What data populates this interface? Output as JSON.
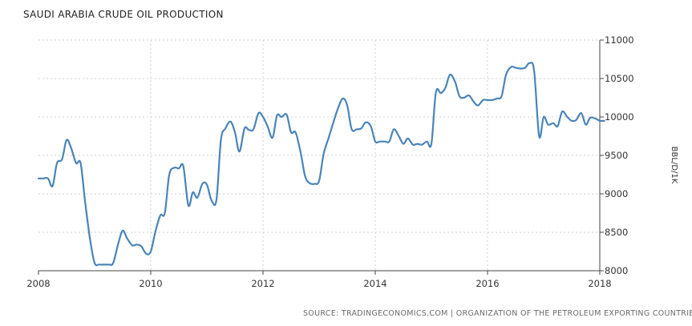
{
  "chart_data": {
    "type": "line",
    "title": "SAUDI ARABIA CRUDE OIL PRODUCTION",
    "ylabel": "BBL/D/1K",
    "xlim": [
      2008.0,
      2018.0
    ],
    "ylim": [
      8000,
      11000
    ],
    "x_ticks": [
      "2008",
      "2010",
      "2012",
      "2014",
      "2016",
      "2018"
    ],
    "y_ticks": [
      "11000",
      "10500",
      "10000",
      "9500",
      "9000",
      "8500",
      "8000"
    ],
    "grid": "horizontal and vertical dashed",
    "source": "SOURCE: TRADINGECONOMICS.COM | ORGANIZATION OF THE PETROLEUM EXPORTING COUNTRIES",
    "line_color": "#4a84b8",
    "series": [
      {
        "x": [
          2008.0,
          2008.08,
          2008.17,
          2008.25,
          2008.33,
          2008.42,
          2008.5,
          2008.58,
          2008.67,
          2008.75,
          2008.83,
          2008.92,
          2009.0,
          2009.08,
          2009.17,
          2009.25,
          2009.33,
          2009.42,
          2009.5,
          2009.58,
          2009.67,
          2009.75,
          2009.83,
          2009.92,
          2010.0,
          2010.08,
          2010.17,
          2010.25,
          2010.33,
          2010.42,
          2010.5,
          2010.58,
          2010.67,
          2010.75,
          2010.83,
          2010.92,
          2011.0,
          2011.08,
          2011.17,
          2011.25,
          2011.33,
          2011.42,
          2011.5,
          2011.58,
          2011.67,
          2011.75,
          2011.83,
          2011.92,
          2012.0,
          2012.08,
          2012.17,
          2012.25,
          2012.33,
          2012.42,
          2012.5,
          2012.58,
          2012.67,
          2012.75,
          2012.83,
          2012.92,
          2013.0,
          2013.08,
          2013.17,
          2013.25,
          2013.33,
          2013.42,
          2013.5,
          2013.58,
          2013.67,
          2013.75,
          2013.83,
          2013.92,
          2014.0,
          2014.08,
          2014.17,
          2014.25,
          2014.33,
          2014.42,
          2014.5,
          2014.58,
          2014.67,
          2014.75,
          2014.83,
          2014.92,
          2015.0,
          2015.08,
          2015.17,
          2015.25,
          2015.33,
          2015.42,
          2015.5,
          2015.58,
          2015.67,
          2015.75,
          2015.83,
          2015.92,
          2016.0,
          2016.08,
          2016.17,
          2016.25,
          2016.33,
          2016.42,
          2016.5,
          2016.58,
          2016.67,
          2016.75,
          2016.83,
          2016.92,
          2017.0,
          2017.08,
          2017.17,
          2017.25,
          2017.33,
          2017.42,
          2017.5,
          2017.58,
          2017.67,
          2017.75,
          2017.83,
          2017.92,
          2018.0,
          2018.08
        ],
        "y": [
          9200,
          9200,
          9200,
          9100,
          9400,
          9450,
          9700,
          9600,
          9400,
          9400,
          8900,
          8400,
          8100,
          8080,
          8080,
          8080,
          8100,
          8350,
          8520,
          8420,
          8330,
          8340,
          8320,
          8220,
          8250,
          8500,
          8720,
          8750,
          9250,
          9340,
          9330,
          9360,
          8850,
          9020,
          8950,
          9130,
          9120,
          8920,
          8920,
          9700,
          9850,
          9940,
          9800,
          9550,
          9850,
          9830,
          9840,
          10050,
          10000,
          9880,
          9730,
          10020,
          10000,
          10030,
          9800,
          9800,
          9540,
          9230,
          9140,
          9130,
          9170,
          9520,
          9730,
          9920,
          10100,
          10240,
          10150,
          9840,
          9840,
          9850,
          9930,
          9880,
          9680,
          9680,
          9680,
          9680,
          9840,
          9750,
          9650,
          9720,
          9640,
          9650,
          9640,
          9680,
          9650,
          10320,
          10310,
          10380,
          10550,
          10460,
          10270,
          10250,
          10280,
          10200,
          10150,
          10220,
          10220,
          10220,
          10240,
          10270,
          10550,
          10650,
          10640,
          10630,
          10640,
          10700,
          10600,
          9750,
          10000,
          9900,
          9920,
          9880,
          10070,
          10000,
          9950,
          9960,
          10050,
          9900,
          9990,
          9980,
          9950,
          9950
        ]
      }
    ]
  }
}
